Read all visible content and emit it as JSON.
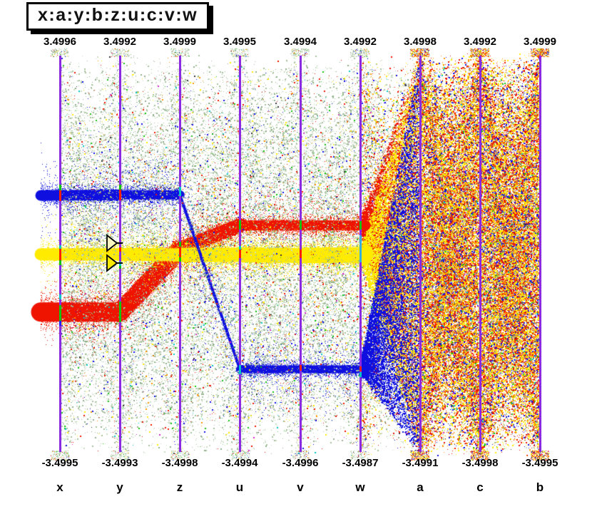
{
  "title": "x:a:y:b:z:u:c:v:w",
  "colors": {
    "background": "#ffffff",
    "axis": "#8a2be2",
    "clusters": {
      "blue": "#0f10e0",
      "red": "#ee1400",
      "yellow": "#ffeb00"
    },
    "noise": {
      "sage": "#a6c09e",
      "sage_light": "#c9dcc3",
      "sage_dark": "#8fae88",
      "red": "#ee1400",
      "blue": "#1111e8",
      "yellow": "#ffe900",
      "orange": "#ff9400",
      "green": "#12c30f",
      "cyan": "#00c6c6",
      "magenta": "#d428c8",
      "dark": "#333333"
    },
    "ticks": {
      "green": "#12c30f",
      "red": "#ff2000",
      "cyan": "#00c6c6",
      "blue": "#2222ff",
      "cyan_soft": "#35aee0"
    }
  },
  "brush_handles": {
    "upper_fill": "#fcf6c0",
    "lower_fill": "#f8ea00"
  },
  "chart_data": {
    "type": "parallel-coordinates",
    "title": "x:a:y:b:z:u:c:v:w",
    "axes": [
      {
        "name": "x",
        "max": "3.4996",
        "min": "-3.4995"
      },
      {
        "name": "y",
        "max": "3.4992",
        "min": "-3.4993"
      },
      {
        "name": "z",
        "max": "3.4999",
        "min": "-3.4998"
      },
      {
        "name": "u",
        "max": "3.4995",
        "min": "-3.4994"
      },
      {
        "name": "v",
        "max": "3.4994",
        "min": "-3.4996"
      },
      {
        "name": "w",
        "max": "3.4992",
        "min": "-3.4987"
      },
      {
        "name": "a",
        "max": "3.4998",
        "min": "-3.4991"
      },
      {
        "name": "c",
        "max": "3.4992",
        "min": "-3.4998"
      },
      {
        "name": "b",
        "max": "3.4999",
        "min": "-3.4995"
      }
    ],
    "clusters": [
      {
        "name": "blue-cluster",
        "color": "#0f10e0",
        "values": [
          1.03,
          1.04,
          1.04,
          -2.04,
          -2.04,
          -2.04,
          null,
          null,
          null
        ]
      },
      {
        "name": "red-cluster",
        "color": "#ee1400",
        "values": [
          -1.03,
          -1.03,
          0.08,
          0.5,
          0.5,
          0.5,
          null,
          null,
          null
        ]
      },
      {
        "name": "yellow-cluster",
        "color": "#ffeb00",
        "values": [
          -0.01,
          -0.01,
          -0.02,
          -0.02,
          -0.03,
          -0.02,
          null,
          null,
          null
        ]
      }
    ],
    "note_clusters_spread": "clusters fan out to uniform random values on axes a, c, b",
    "background": "dense uniform random scatter lines; sparse sage-green at left, dense yellow/red/orange/blue right of axis w"
  }
}
